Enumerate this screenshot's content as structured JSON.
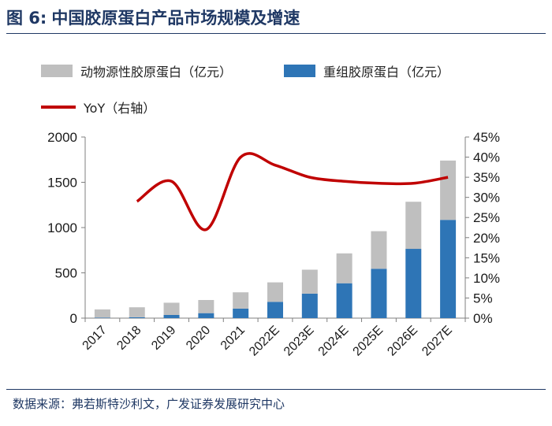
{
  "figure": {
    "label": "图 6:",
    "title": "中国胶原蛋白产品市场规模及增速",
    "source": "数据来源：弗若斯特沙利文，广发证券发展研究中心"
  },
  "colors": {
    "animal": "#bfbfbf",
    "recombinant": "#2e75b6",
    "yoy": "#c00000",
    "title": "#1f3864"
  },
  "chart_data": {
    "type": "bar",
    "stacked": true,
    "categories": [
      "2017",
      "2018",
      "2019",
      "2020",
      "2021",
      "2022E",
      "2023E",
      "2024E",
      "2025E",
      "2026E",
      "2027E"
    ],
    "series": [
      {
        "name": "动物源性胶原蛋白（亿元）",
        "type": "bar",
        "axis": "left",
        "values": [
          91,
          110,
          135,
          145,
          180,
          215,
          265,
          330,
          415,
          520,
          655
        ]
      },
      {
        "name": "重组胶原蛋白（亿元）",
        "type": "bar",
        "axis": "left",
        "values": [
          5,
          10,
          35,
          55,
          105,
          180,
          270,
          385,
          545,
          765,
          1085
        ]
      },
      {
        "name": "YoY（右轴）",
        "type": "line",
        "axis": "right",
        "values": [
          null,
          29,
          34,
          22,
          40,
          38,
          35,
          34,
          33.5,
          33.5,
          35
        ]
      }
    ],
    "y_left": {
      "min": 0,
      "max": 2000,
      "ticks": [
        "0",
        "500",
        "1000",
        "1500",
        "2000"
      ]
    },
    "y_right": {
      "min": 0,
      "max": 45,
      "ticks": [
        "0%",
        "5%",
        "10%",
        "15%",
        "20%",
        "25%",
        "30%",
        "35%",
        "40%",
        "45%"
      ]
    },
    "grid": false,
    "legend_position": "top-left"
  }
}
